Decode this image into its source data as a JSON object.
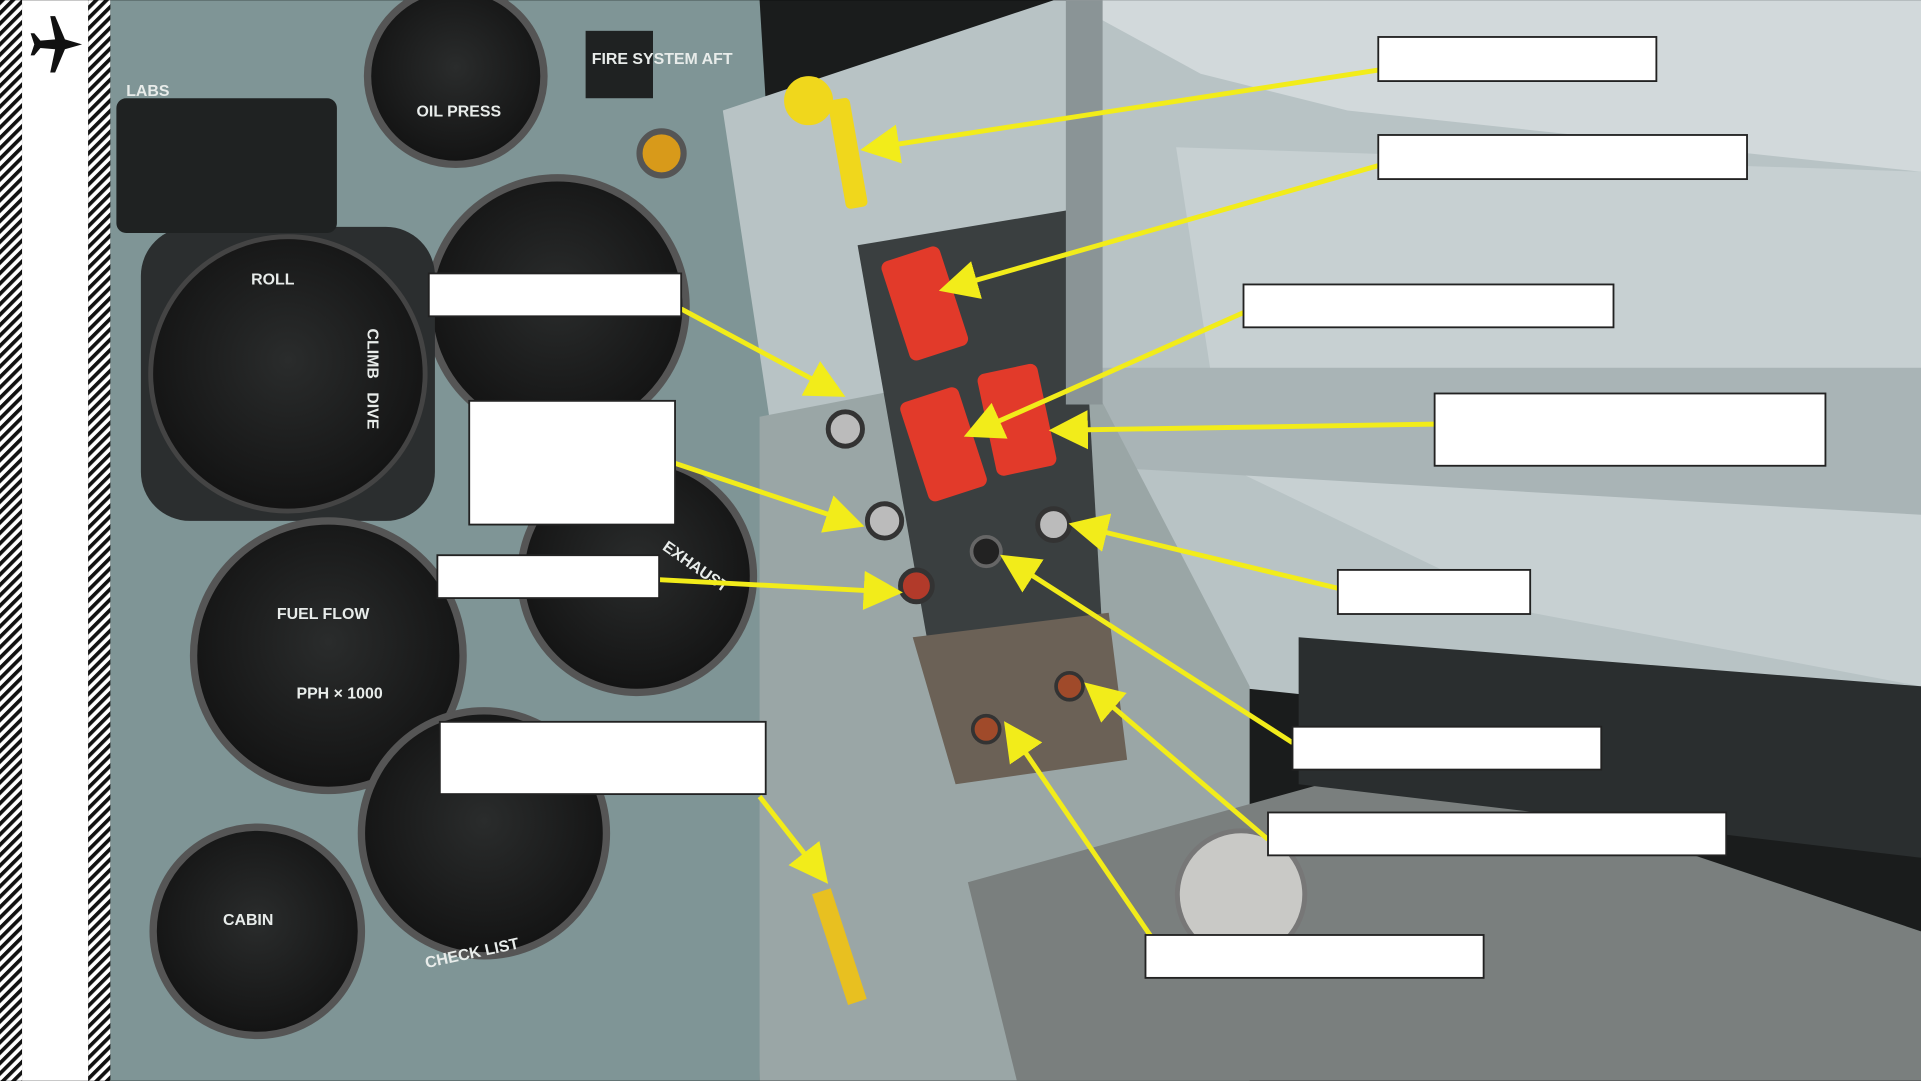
{
  "panel_placards": {
    "labs": "LABS",
    "fire_system": "FIRE SYSTEM AFT",
    "oil_press": "OIL PRESS",
    "fuel_flow": "FUEL FLOW",
    "fuel_flow_units": "PPH × 1000",
    "roll": "ROLL",
    "climb": "CLIMB",
    "dive": "DIVE",
    "exhaust": "EXHAUST",
    "cabin": "CABIN",
    "check_list": "CHECK LIST"
  }
}
